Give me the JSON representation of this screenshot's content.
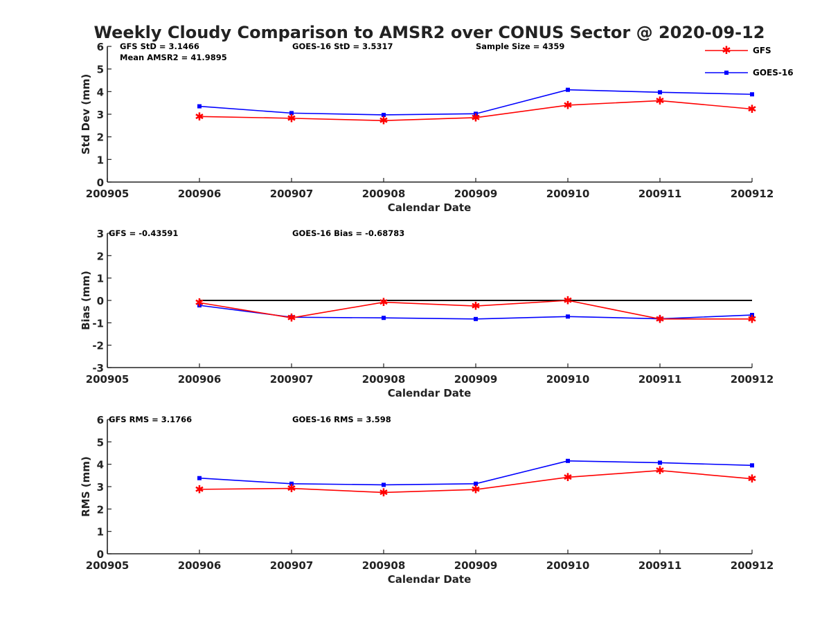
{
  "figure_title": "Weekly Cloudy Comparison to AMSR2 over CONUS Sector @ 2020-09-12",
  "legend": [
    {
      "label": "GFS",
      "color": "#ff0000",
      "marker": "asterisk"
    },
    {
      "label": "GOES-16",
      "color": "#0000ff",
      "marker": "square"
    }
  ],
  "chart_data": [
    {
      "type": "line",
      "title": "",
      "xlabel": "Calendar Date",
      "ylabel": "Std Dev (mm)",
      "x_tick_labels": [
        "200905",
        "200906",
        "200907",
        "200908",
        "200909",
        "200910",
        "200911",
        "200912"
      ],
      "x": [
        "200906",
        "200907",
        "200908",
        "200909",
        "200910",
        "200911",
        "200912"
      ],
      "ylim": [
        0,
        6
      ],
      "yticks": [
        0,
        1,
        2,
        3,
        4,
        5,
        6
      ],
      "reference_line": null,
      "annotations": [
        "GFS StD = 3.1466",
        "GOES-16 StD = 3.5317",
        "Sample Size = 4359",
        "Mean AMSR2 = 41.9895"
      ],
      "series": [
        {
          "name": "GFS",
          "color": "#ff0000",
          "values": [
            2.9,
            2.82,
            2.72,
            2.85,
            3.4,
            3.6,
            3.23
          ]
        },
        {
          "name": "GOES-16",
          "color": "#0000ff",
          "values": [
            3.35,
            3.05,
            2.97,
            3.02,
            4.08,
            3.97,
            3.88
          ]
        }
      ]
    },
    {
      "type": "line",
      "title": "",
      "xlabel": "Calendar Date",
      "ylabel": "Bias (mm)",
      "x_tick_labels": [
        "200905",
        "200906",
        "200907",
        "200908",
        "200909",
        "200910",
        "200911",
        "200912"
      ],
      "x": [
        "200906",
        "200907",
        "200908",
        "200909",
        "200910",
        "200911",
        "200912"
      ],
      "ylim": [
        -3,
        3
      ],
      "yticks": [
        -3,
        -2,
        -1,
        0,
        1,
        2,
        3
      ],
      "reference_line": 0,
      "annotations": [
        "GFS = -0.43591",
        "GOES-16 Bias  = -0.68783"
      ],
      "series": [
        {
          "name": "GFS",
          "color": "#ff0000",
          "values": [
            -0.1,
            -0.78,
            -0.08,
            -0.25,
            0.0,
            -0.83,
            -0.83
          ]
        },
        {
          "name": "GOES-16",
          "color": "#0000ff",
          "values": [
            -0.22,
            -0.75,
            -0.78,
            -0.83,
            -0.72,
            -0.82,
            -0.65
          ]
        }
      ]
    },
    {
      "type": "line",
      "title": "",
      "xlabel": "Calendar Date",
      "ylabel": "RMS (mm)",
      "x_tick_labels": [
        "200905",
        "200906",
        "200907",
        "200908",
        "200909",
        "200910",
        "200911",
        "200912"
      ],
      "x": [
        "200906",
        "200907",
        "200908",
        "200909",
        "200910",
        "200911",
        "200912"
      ],
      "ylim": [
        0,
        6
      ],
      "yticks": [
        0,
        1,
        2,
        3,
        4,
        5,
        6
      ],
      "reference_line": null,
      "annotations": [
        "GFS RMS = 3.1766",
        "GOES-16 RMS = 3.598"
      ],
      "series": [
        {
          "name": "GFS",
          "color": "#ff0000",
          "values": [
            2.88,
            2.92,
            2.74,
            2.87,
            3.42,
            3.72,
            3.35
          ]
        },
        {
          "name": "GOES-16",
          "color": "#0000ff",
          "values": [
            3.38,
            3.13,
            3.08,
            3.13,
            4.15,
            4.07,
            3.95
          ]
        }
      ]
    }
  ]
}
